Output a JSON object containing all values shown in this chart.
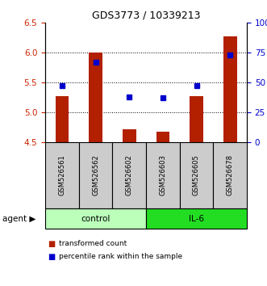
{
  "title": "GDS3773 / 10339213",
  "samples": [
    "GSM526561",
    "GSM526562",
    "GSM526602",
    "GSM526603",
    "GSM526605",
    "GSM526678"
  ],
  "transformed_count": [
    5.27,
    6.0,
    4.72,
    4.67,
    5.27,
    6.27
  ],
  "percentile_rank": [
    47,
    67,
    38,
    37,
    47,
    73
  ],
  "ylim_left": [
    4.5,
    6.5
  ],
  "yticks_left": [
    4.5,
    5.0,
    5.5,
    6.0,
    6.5
  ],
  "ylim_right": [
    0,
    100
  ],
  "yticks_right": [
    0,
    25,
    50,
    75,
    100
  ],
  "yticklabels_right": [
    "0",
    "25",
    "50",
    "75",
    "100%"
  ],
  "bar_color": "#B22000",
  "dot_color": "#0000CC",
  "bar_bottom": 4.5,
  "left_tick_color": "#CC2200",
  "right_tick_color": "#0000CC",
  "grid_yticks": [
    5.0,
    5.5,
    6.0
  ],
  "control_color": "#BBFFBB",
  "il6_color": "#22DD22",
  "sample_box_color": "#CCCCCC",
  "legend_bar_label": "transformed count",
  "legend_dot_label": "percentile rank within the sample"
}
